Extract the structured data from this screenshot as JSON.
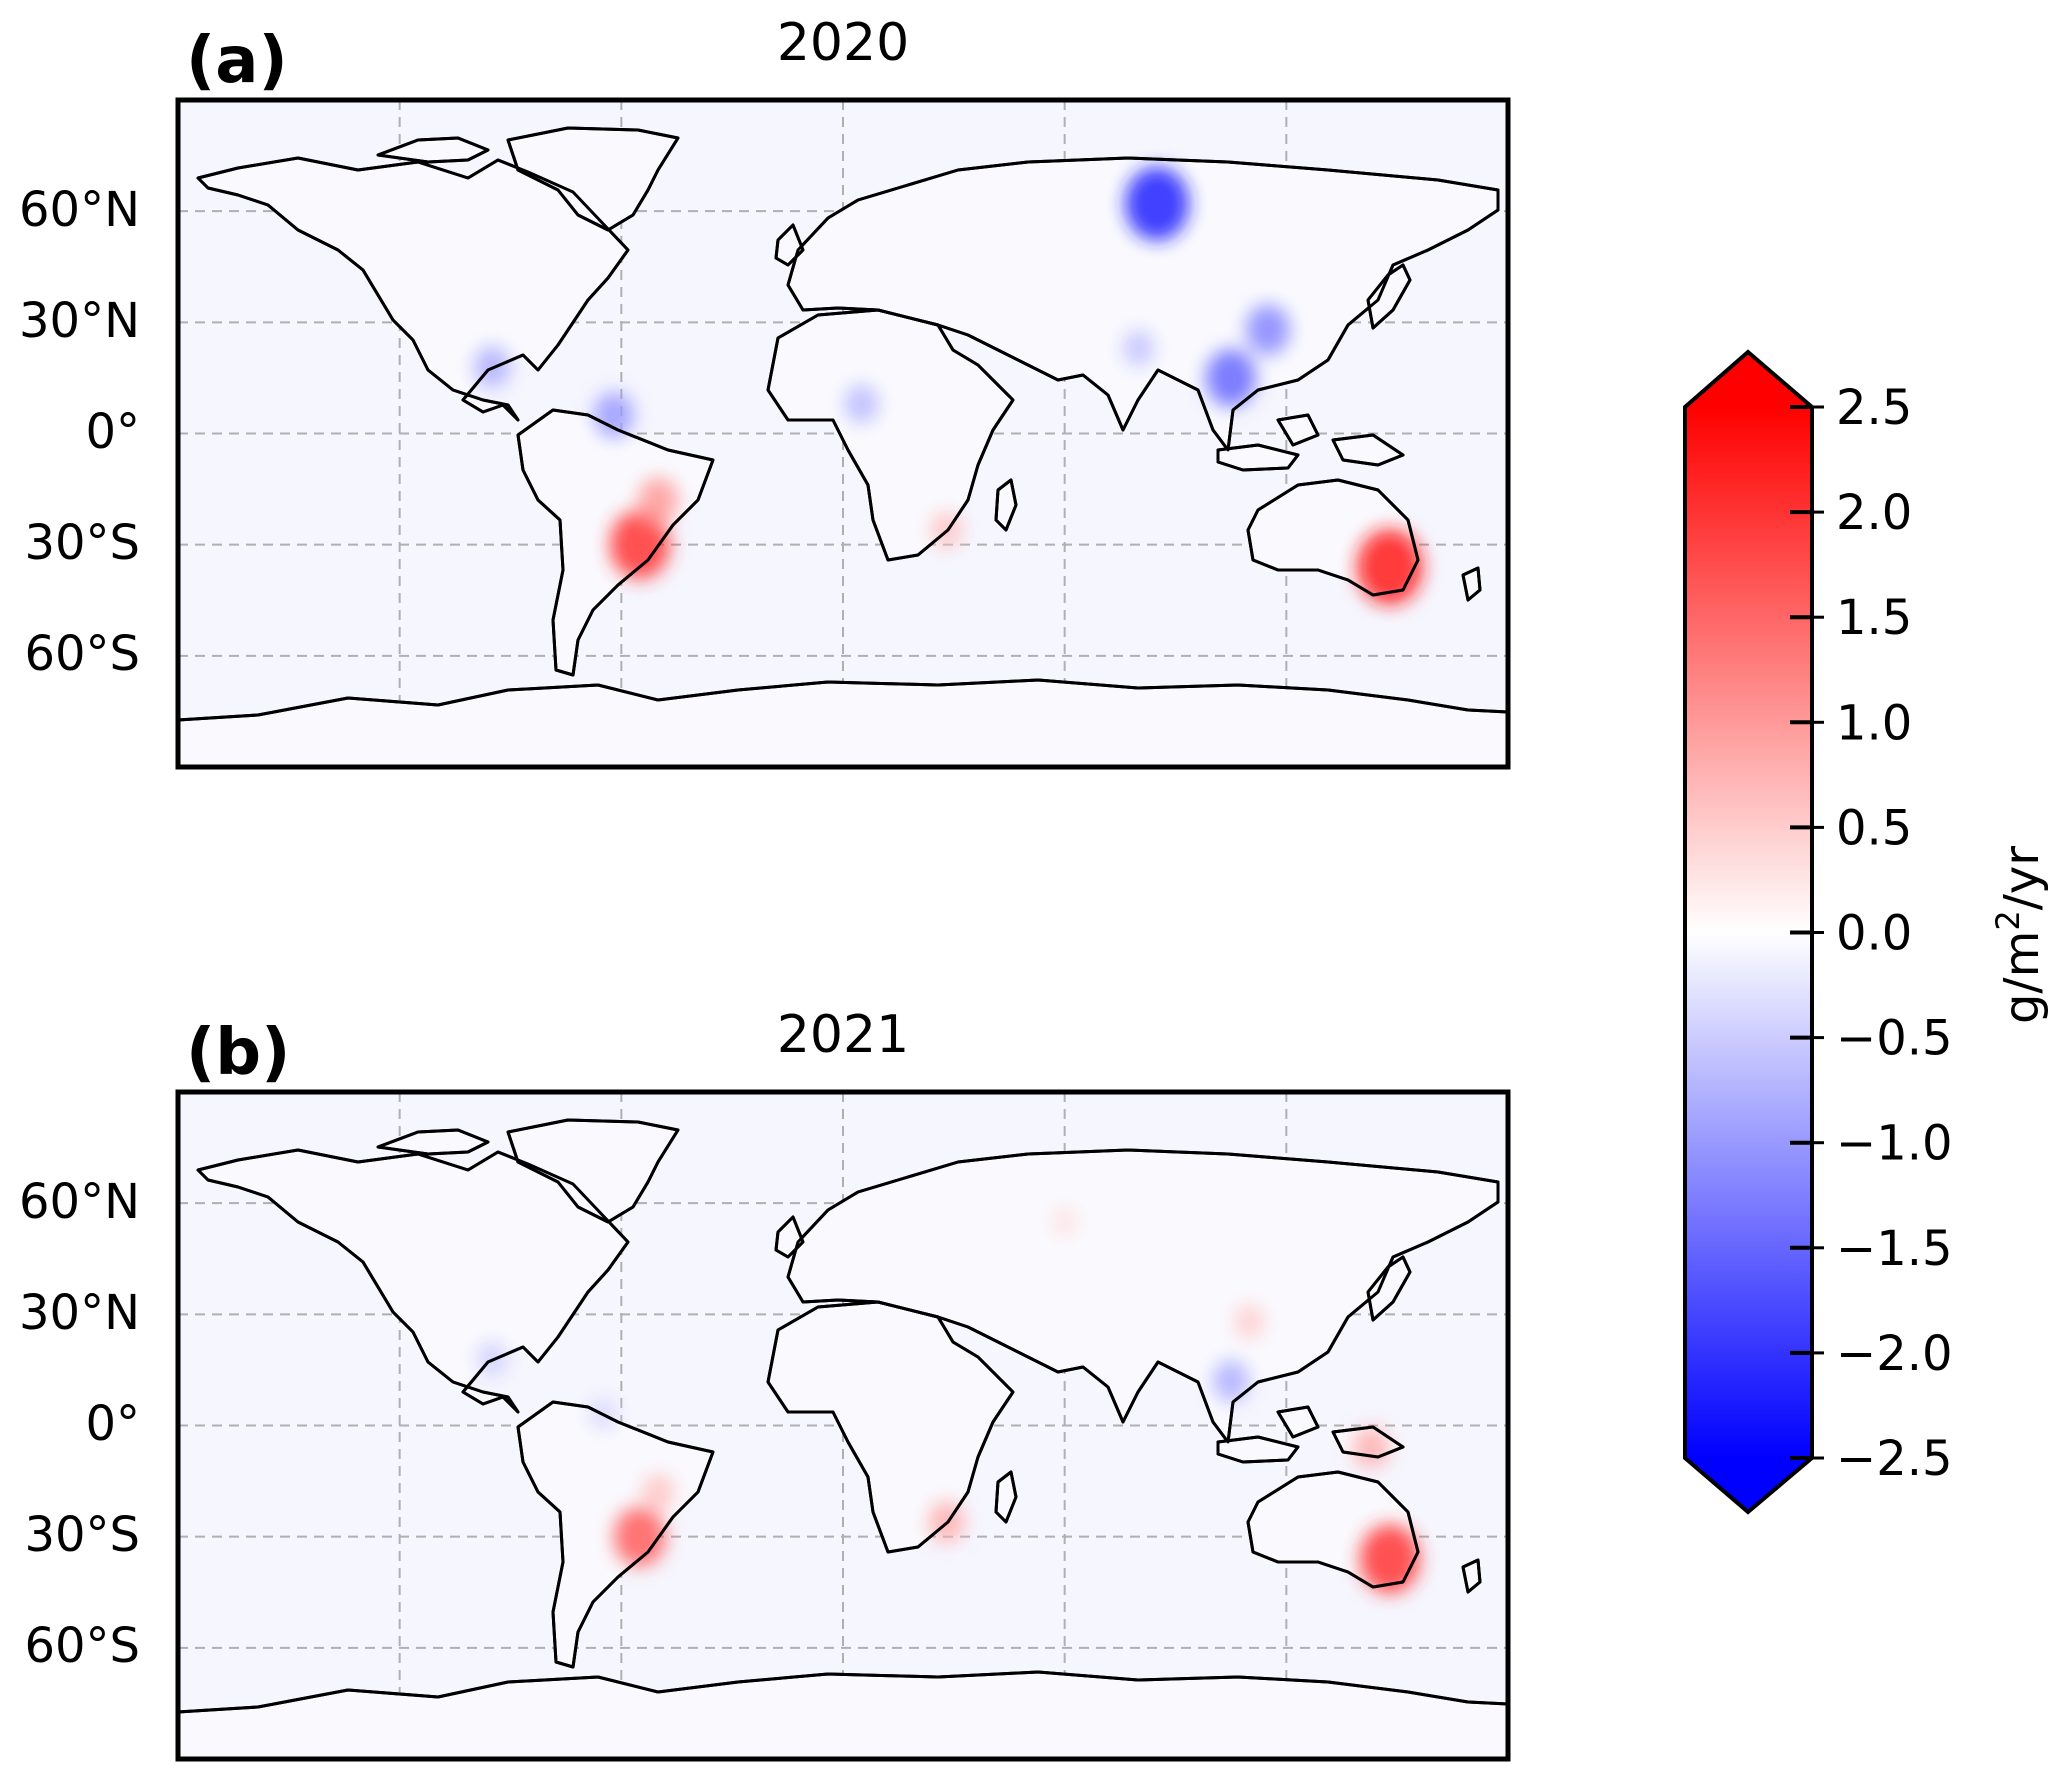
{
  "panels": [
    {
      "letter": "(a)",
      "title": "2020",
      "lat_labels": [
        "60°N",
        "30°N",
        "0°",
        "30°S",
        "60°S"
      ],
      "anomalies": [
        {
          "region": "South America (southeast)",
          "lon": -55,
          "lat": -30,
          "value": 2.0
        },
        {
          "region": "South America (central)",
          "lon": -50,
          "lat": -18,
          "value": 1.0
        },
        {
          "region": "Southern Africa",
          "lon": 28,
          "lat": -26,
          "value": 0.6
        },
        {
          "region": "Southeast Australia",
          "lon": 148,
          "lat": -36,
          "value": 2.3
        },
        {
          "region": "Northern South America",
          "lon": -62,
          "lat": 5,
          "value": -1.0
        },
        {
          "region": "Central America",
          "lon": -95,
          "lat": 18,
          "value": -0.8
        },
        {
          "region": "Sahel",
          "lon": 5,
          "lat": 8,
          "value": -0.7
        },
        {
          "region": "Siberia",
          "lon": 85,
          "lat": 62,
          "value": -2.2
        },
        {
          "region": "East China",
          "lon": 115,
          "lat": 28,
          "value": -1.2
        },
        {
          "region": "Indochina",
          "lon": 105,
          "lat": 15,
          "value": -1.5
        },
        {
          "region": "India",
          "lon": 80,
          "lat": 23,
          "value": -0.6
        }
      ]
    },
    {
      "letter": "(b)",
      "title": "2021",
      "lat_labels": [
        "60°N",
        "30°N",
        "0°",
        "30°S",
        "60°S"
      ],
      "anomalies": [
        {
          "region": "South America (southeast)",
          "lon": -55,
          "lat": -30,
          "value": 1.6
        },
        {
          "region": "South America (central)",
          "lon": -50,
          "lat": -18,
          "value": 0.6
        },
        {
          "region": "Southern Africa",
          "lon": 28,
          "lat": -26,
          "value": 0.8
        },
        {
          "region": "Southeast Australia",
          "lon": 148,
          "lat": -36,
          "value": 2.0
        },
        {
          "region": "New Guinea",
          "lon": 143,
          "lat": -6,
          "value": 0.8
        },
        {
          "region": "South China",
          "lon": 110,
          "lat": 28,
          "value": 0.5
        },
        {
          "region": "Northern South America",
          "lon": -65,
          "lat": 3,
          "value": -0.4
        },
        {
          "region": "Central America",
          "lon": -95,
          "lat": 18,
          "value": -0.5
        },
        {
          "region": "Indochina",
          "lon": 105,
          "lat": 12,
          "value": -0.8
        },
        {
          "region": "Eurasia",
          "lon": 60,
          "lat": 55,
          "value": 0.3
        }
      ]
    }
  ],
  "colorbar": {
    "tick_labels": [
      "2.5",
      "2.0",
      "1.5",
      "1.0",
      "0.5",
      "0.0",
      "−0.5",
      "−1.0",
      "−1.5",
      "−2.0",
      "−2.5"
    ],
    "tick_values": [
      2.5,
      2.0,
      1.5,
      1.0,
      0.5,
      0.0,
      -0.5,
      -1.0,
      -1.5,
      -2.0,
      -2.5
    ],
    "unit_main": "g/m",
    "unit_sup": "2",
    "unit_tail": "/yr",
    "vmin": -2.5,
    "vmax": 2.5,
    "colormap": "bwr",
    "extend": "both"
  },
  "map": {
    "projection": "PlateCarree",
    "lon_range": [
      -180,
      180
    ],
    "lat_range": [
      -90,
      90
    ],
    "gridlines": "dashed",
    "grid_lon_step": 60,
    "grid_lat_step": 30,
    "background_color": "#f6f6fe",
    "coastline_color": "#000000"
  }
}
